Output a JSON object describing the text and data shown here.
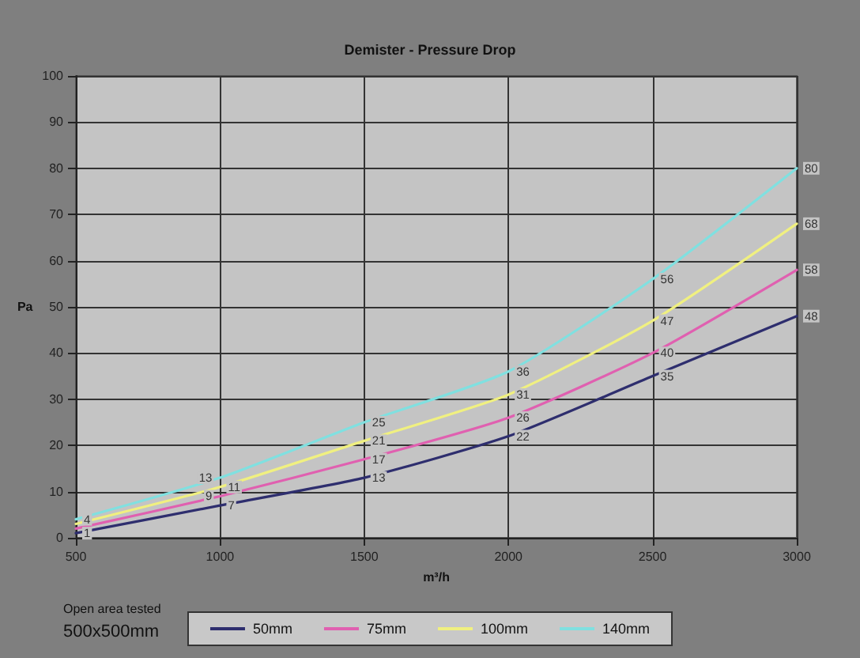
{
  "chart_data": {
    "type": "line",
    "title": "Demister - Pressure Drop",
    "xlabel": "m³/h",
    "ylabel": "Pa",
    "x": [
      500,
      1000,
      1500,
      2000,
      2500,
      3000
    ],
    "series": [
      {
        "name": "50mm",
        "color": "#2e2e6e",
        "values": [
          1,
          7,
          13,
          22,
          35,
          48
        ],
        "value_labels": [
          "1",
          "7",
          "13",
          "22",
          "35",
          "48"
        ]
      },
      {
        "name": "75mm",
        "color": "#e060b0",
        "values": [
          2,
          9,
          17,
          26,
          40,
          58
        ],
        "value_labels": [
          null,
          "9",
          "17",
          "26",
          "40",
          "58"
        ]
      },
      {
        "name": "100mm",
        "color": "#f0f080",
        "values": [
          3,
          11,
          21,
          31,
          47,
          68
        ],
        "value_labels": [
          null,
          "11",
          "21",
          "31",
          "47",
          "68"
        ]
      },
      {
        "name": "140mm",
        "color": "#80e0e0",
        "values": [
          4,
          13,
          25,
          36,
          56,
          80
        ],
        "value_labels": [
          "4",
          "13",
          "25",
          "36",
          "56",
          "80"
        ]
      }
    ],
    "xlim": [
      500,
      3000
    ],
    "xticks": [
      500,
      1000,
      1500,
      2000,
      2500,
      3000
    ],
    "ylim": [
      0,
      100
    ],
    "yticks": [
      0,
      10,
      20,
      30,
      40,
      50,
      60,
      70,
      80,
      90,
      100
    ],
    "grid": true,
    "legend": "bottom",
    "marker": "none",
    "line_style": "solid",
    "annotations": [
      "Open area tested",
      "500x500mm"
    ]
  }
}
